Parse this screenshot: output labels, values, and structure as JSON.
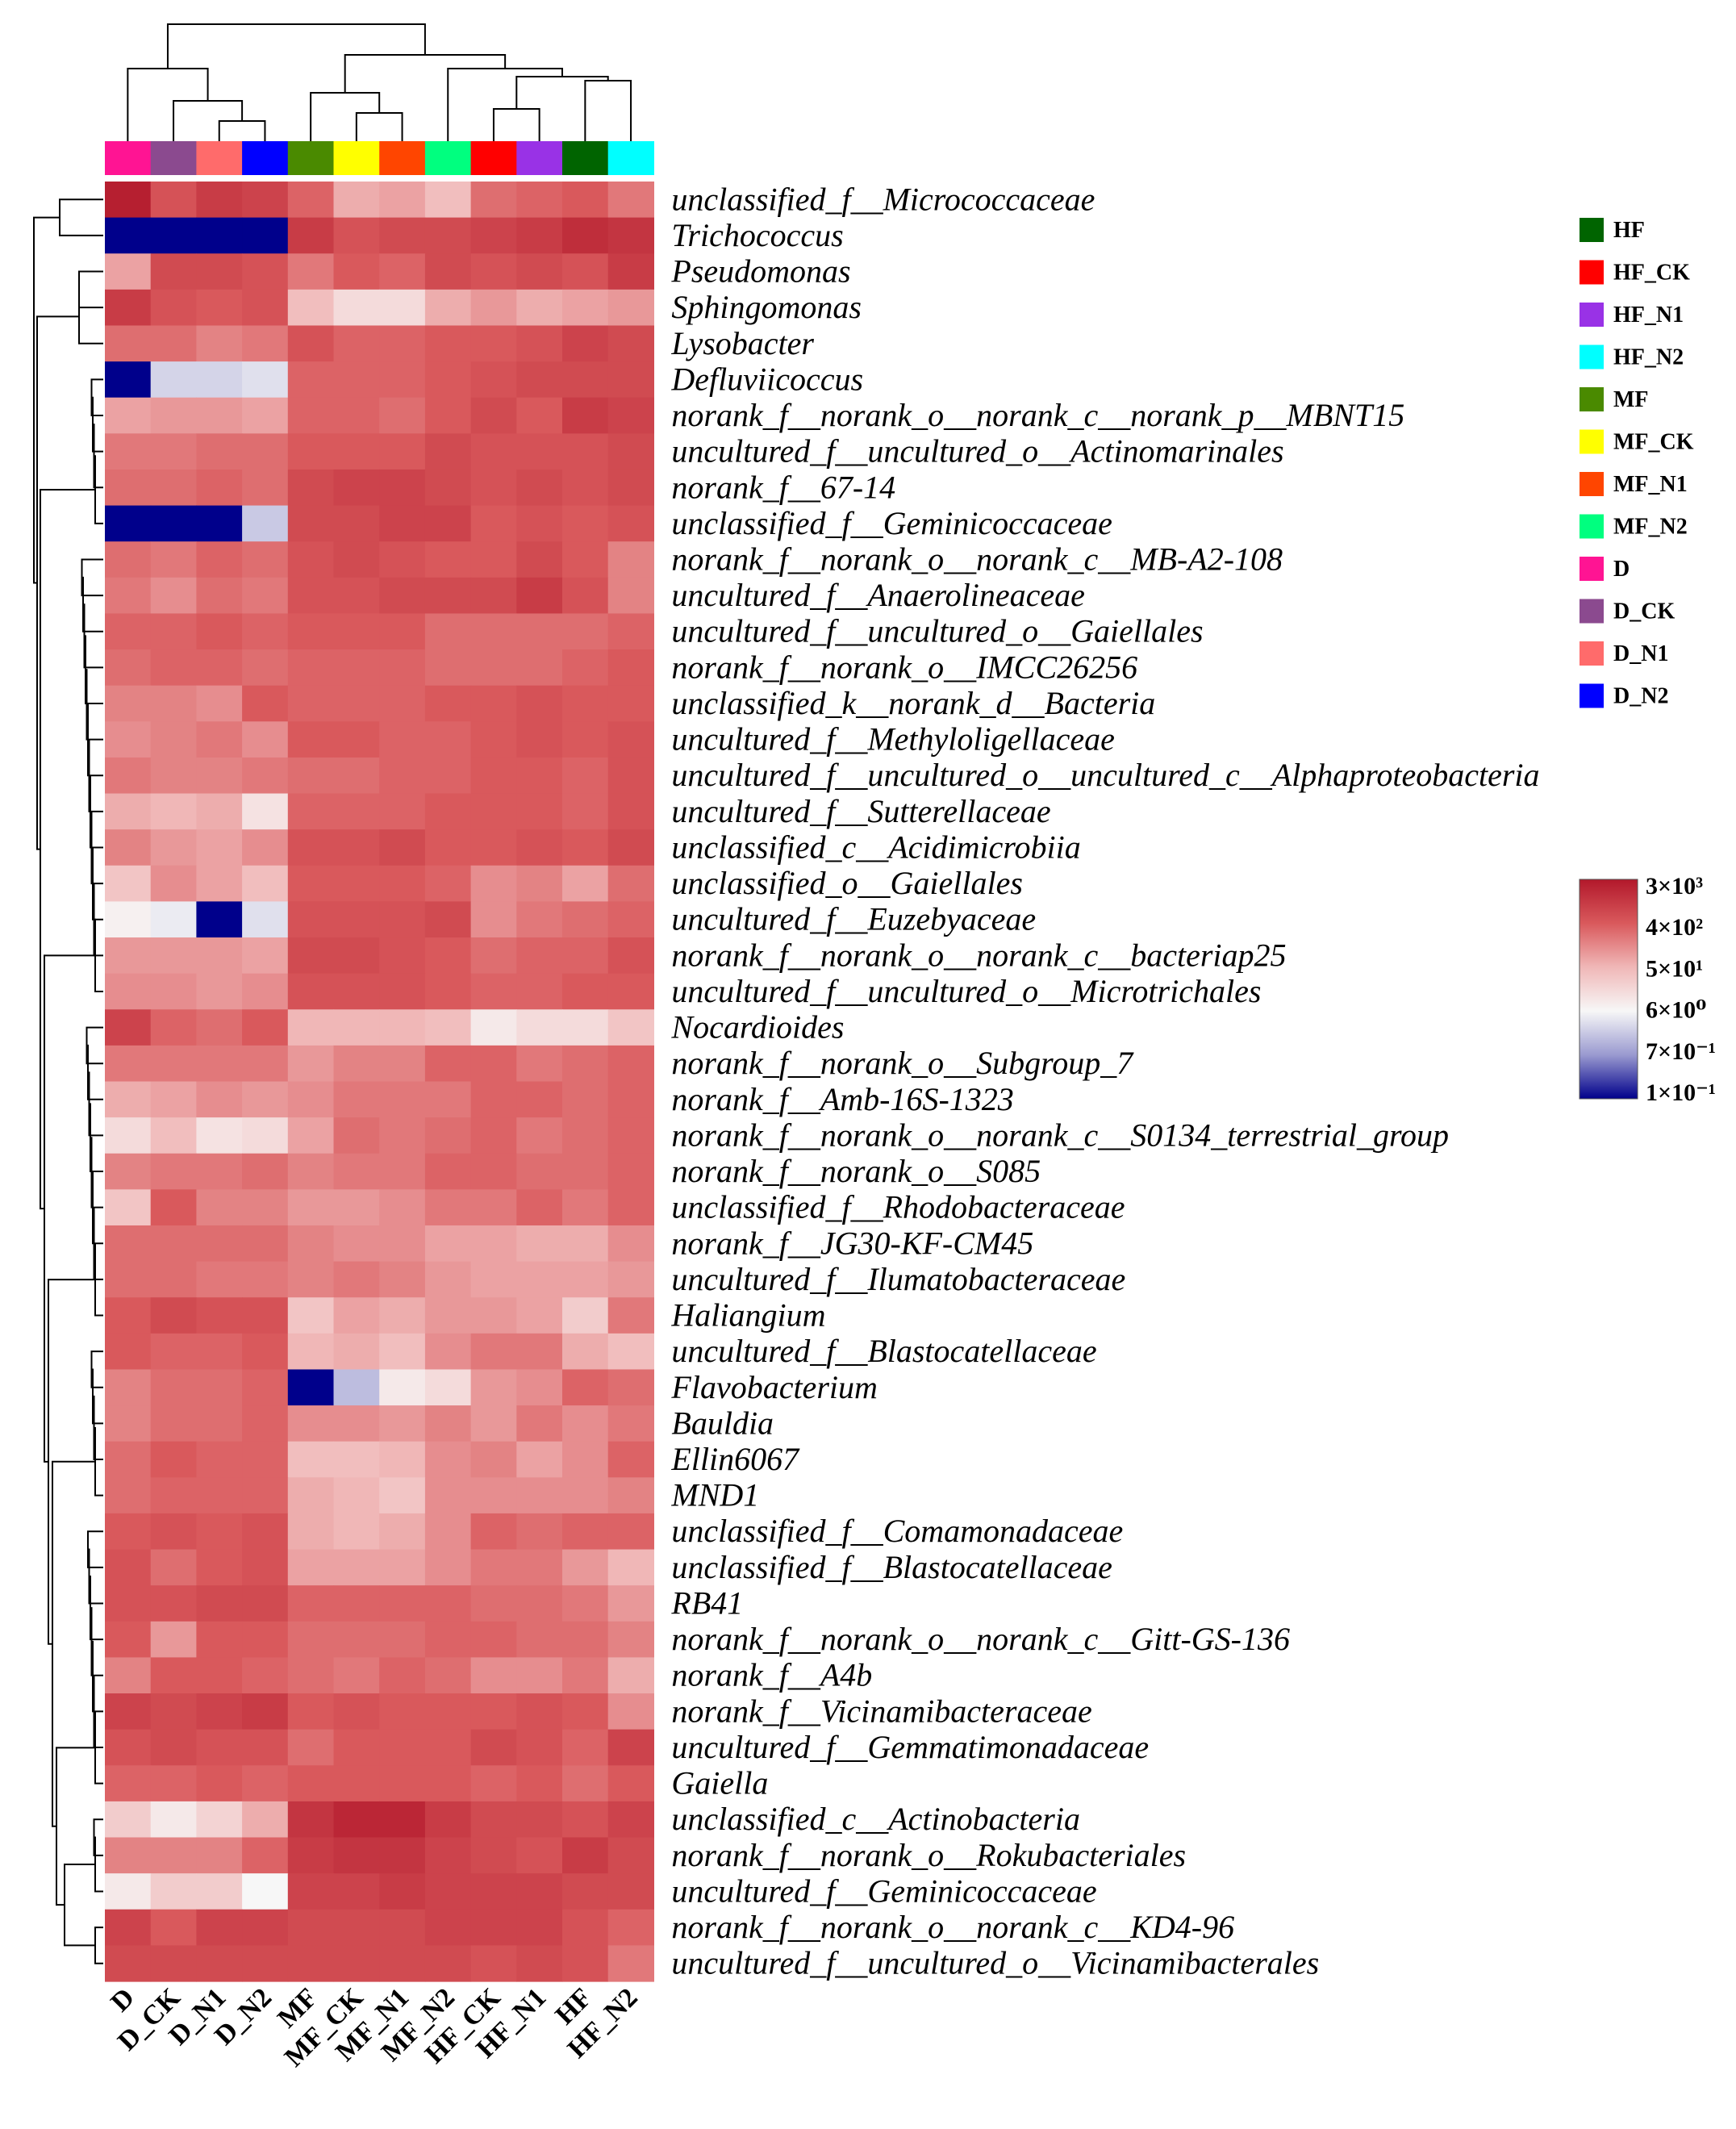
{
  "colors": {
    "group": {
      "D": "#ff1493",
      "D_CK": "#8b4a8f",
      "D_N1": "#ff6b6b",
      "D_N2": "#0000ff",
      "MF": "#4a8a00",
      "MF_CK": "#ffff00",
      "MF_N1": "#ff4500",
      "MF_N2": "#00ff7f",
      "HF_CK": "#ff0000",
      "HF_N1": "#9932e6",
      "HF": "#006400",
      "HF_N2": "#00ffff"
    },
    "scale": [
      "#b2182b",
      "#d9595c",
      "#f0b7b7",
      "#f7f7f7",
      "#9a9ad0",
      "#00008b"
    ]
  },
  "chart_data": {
    "type": "heatmap",
    "title": "",
    "columns": [
      "D",
      "D_CK",
      "D_N1",
      "D_N2",
      "MF",
      "MF_CK",
      "MF_N1",
      "MF_N2",
      "HF_CK",
      "HF_N1",
      "HF",
      "HF_N2"
    ],
    "rows": [
      "unclassified_f__Micrococcaceae",
      "Trichococcus",
      "Pseudomonas",
      "Sphingomonas",
      "Lysobacter",
      "Defluviicoccus",
      "norank_f__norank_o__norank_c__norank_p__MBNT15",
      "uncultured_f__uncultured_o__Actinomarinales",
      "norank_f__67-14",
      "unclassified_f__Geminicoccaceae",
      "norank_f__norank_o__norank_c__MB-A2-108",
      "uncultured_f__Anaerolineaceae",
      "uncultured_f__uncultured_o__Gaiellales",
      "norank_f__norank_o__IMCC26256",
      "unclassified_k__norank_d__Bacteria",
      "uncultured_f__Methyloligellaceae",
      "uncultured_f__uncultured_o__uncultured_c__Alphaproteobacteria",
      "uncultured_f__Sutterellaceae",
      "unclassified_c__Acidimicrobiia",
      "unclassified_o__Gaiellales",
      "uncultured_f__Euzebyaceae",
      "norank_f__norank_o__norank_c__bacteriap25",
      "uncultured_f__uncultured_o__Microtrichales",
      "Nocardioides",
      "norank_f__norank_o__Subgroup_7",
      "norank_f__Amb-16S-1323",
      "norank_f__norank_o__norank_c__S0134_terrestrial_group",
      "norank_f__norank_o__S085",
      "unclassified_f__Rhodobacteraceae",
      "norank_f__JG30-KF-CM45",
      "uncultured_f__Ilumatobacteraceae",
      "Haliangium",
      "uncultured_f__Blastocatellaceae",
      "Flavobacterium",
      "Bauldia",
      "Ellin6067",
      "MND1",
      "unclassified_f__Comamonadaceae",
      "unclassified_f__Blastocatellaceae",
      "RB41",
      "norank_f__norank_o__norank_c__Gitt-GS-136",
      "norank_f__A4b",
      "norank_f__Vicinamibacteraceae",
      "uncultured_f__Gemmatimonadaceae",
      "Gaiella",
      "unclassified_c__Actinobacteria",
      "norank_f__norank_o__Rokubacteriales",
      "uncultured_f__Geminicoccaceae",
      "norank_f__norank_o__norank_c__KD4-96",
      "uncultured_f__uncultured_o__Vicinamibacterales"
    ],
    "legend": [
      "HF",
      "HF_CK",
      "HF_N1",
      "HF_N2",
      "MF",
      "MF_CK",
      "MF_N1",
      "MF_N2",
      "D",
      "D_CK",
      "D_N1",
      "D_N2"
    ],
    "color_scale": {
      "labels": [
        "3×10³",
        "4×10²",
        "5×10¹",
        "6×10⁰",
        "7×10⁻¹",
        "1×10⁻¹"
      ],
      "log_min": -1,
      "log_max": 3.5
    },
    "values_log10": [
      [
        3.4,
        2.7,
        3.0,
        2.9,
        2.5,
        1.8,
        1.9,
        1.6,
        2.4,
        2.5,
        2.6,
        2.3
      ],
      [
        -1.0,
        -1.0,
        -1.0,
        -1.0,
        3.0,
        2.7,
        2.8,
        2.8,
        2.9,
        3.0,
        3.2,
        3.1
      ],
      [
        1.9,
        2.8,
        2.8,
        2.7,
        2.3,
        2.6,
        2.5,
        2.8,
        2.7,
        2.8,
        2.7,
        3.0
      ],
      [
        3.0,
        2.7,
        2.6,
        2.7,
        1.6,
        1.2,
        1.2,
        1.8,
        2.0,
        1.8,
        1.9,
        2.0
      ],
      [
        2.4,
        2.4,
        2.2,
        2.3,
        2.7,
        2.5,
        2.5,
        2.6,
        2.6,
        2.7,
        2.9,
        2.8
      ],
      [
        -1.0,
        0.5,
        0.5,
        0.6,
        2.5,
        2.5,
        2.5,
        2.6,
        2.7,
        2.8,
        2.8,
        2.8
      ],
      [
        1.9,
        2.0,
        2.0,
        1.9,
        2.5,
        2.5,
        2.4,
        2.6,
        2.8,
        2.6,
        3.0,
        2.9
      ],
      [
        2.3,
        2.3,
        2.4,
        2.4,
        2.6,
        2.6,
        2.6,
        2.8,
        2.7,
        2.7,
        2.7,
        2.8
      ],
      [
        2.4,
        2.4,
        2.5,
        2.4,
        2.8,
        2.9,
        2.9,
        2.8,
        2.7,
        2.8,
        2.7,
        2.8
      ],
      [
        -1.0,
        -1.0,
        -1.0,
        0.4,
        2.8,
        2.8,
        2.9,
        2.9,
        2.6,
        2.7,
        2.6,
        2.7
      ],
      [
        2.4,
        2.3,
        2.5,
        2.4,
        2.7,
        2.8,
        2.7,
        2.6,
        2.6,
        2.8,
        2.6,
        2.2
      ],
      [
        2.3,
        2.1,
        2.4,
        2.3,
        2.7,
        2.7,
        2.8,
        2.8,
        2.8,
        3.0,
        2.7,
        2.2
      ],
      [
        2.5,
        2.5,
        2.6,
        2.5,
        2.6,
        2.6,
        2.6,
        2.4,
        2.4,
        2.4,
        2.4,
        2.5
      ],
      [
        2.4,
        2.5,
        2.5,
        2.4,
        2.5,
        2.5,
        2.5,
        2.4,
        2.4,
        2.4,
        2.5,
        2.6
      ],
      [
        2.2,
        2.2,
        2.1,
        2.6,
        2.5,
        2.5,
        2.5,
        2.6,
        2.6,
        2.7,
        2.6,
        2.6
      ],
      [
        2.1,
        2.2,
        2.3,
        2.1,
        2.6,
        2.6,
        2.5,
        2.5,
        2.6,
        2.7,
        2.6,
        2.7
      ],
      [
        2.3,
        2.2,
        2.2,
        2.3,
        2.4,
        2.4,
        2.5,
        2.5,
        2.6,
        2.6,
        2.5,
        2.7
      ],
      [
        1.8,
        1.7,
        1.8,
        1.1,
        2.5,
        2.5,
        2.5,
        2.6,
        2.6,
        2.6,
        2.5,
        2.7
      ],
      [
        2.2,
        2.0,
        1.9,
        2.1,
        2.7,
        2.7,
        2.8,
        2.6,
        2.6,
        2.7,
        2.6,
        2.8
      ],
      [
        1.5,
        2.1,
        1.9,
        1.6,
        2.6,
        2.6,
        2.6,
        2.5,
        2.1,
        2.2,
        1.9,
        2.4
      ],
      [
        0.9,
        0.7,
        -1.0,
        0.6,
        2.7,
        2.7,
        2.7,
        2.8,
        2.1,
        2.3,
        2.4,
        2.5
      ],
      [
        2.0,
        2.0,
        2.0,
        1.9,
        2.8,
        2.8,
        2.7,
        2.6,
        2.4,
        2.5,
        2.5,
        2.7
      ],
      [
        2.1,
        2.1,
        2.0,
        2.1,
        2.7,
        2.7,
        2.7,
        2.6,
        2.5,
        2.5,
        2.6,
        2.6
      ],
      [
        2.9,
        2.5,
        2.4,
        2.6,
        1.7,
        1.7,
        1.7,
        1.6,
        1.0,
        1.2,
        1.2,
        1.5
      ],
      [
        2.3,
        2.3,
        2.3,
        2.3,
        2.0,
        2.2,
        2.2,
        2.5,
        2.5,
        2.3,
        2.4,
        2.5
      ],
      [
        1.8,
        1.9,
        2.1,
        2.0,
        2.1,
        2.3,
        2.3,
        2.3,
        2.5,
        2.5,
        2.4,
        2.5
      ],
      [
        1.2,
        1.6,
        1.1,
        1.2,
        1.9,
        2.4,
        2.3,
        2.4,
        2.5,
        2.3,
        2.4,
        2.5
      ],
      [
        2.2,
        2.3,
        2.3,
        2.4,
        2.2,
        2.3,
        2.3,
        2.5,
        2.5,
        2.4,
        2.4,
        2.5
      ],
      [
        1.5,
        2.6,
        2.2,
        2.2,
        2.0,
        2.0,
        2.1,
        2.3,
        2.3,
        2.5,
        2.3,
        2.5
      ],
      [
        2.4,
        2.4,
        2.4,
        2.4,
        2.2,
        2.1,
        2.1,
        1.9,
        1.9,
        1.8,
        1.8,
        2.1
      ],
      [
        2.4,
        2.4,
        2.3,
        2.3,
        2.2,
        2.3,
        2.2,
        2.0,
        1.9,
        1.9,
        1.9,
        2.0
      ],
      [
        2.6,
        2.8,
        2.7,
        2.7,
        1.5,
        1.9,
        1.8,
        2.0,
        2.0,
        1.9,
        1.4,
        2.3
      ],
      [
        2.6,
        2.5,
        2.5,
        2.6,
        1.7,
        1.8,
        1.6,
        2.1,
        2.3,
        2.3,
        1.8,
        1.6
      ],
      [
        2.2,
        2.4,
        2.4,
        2.5,
        -1.0,
        0.3,
        1.0,
        1.2,
        2.0,
        2.1,
        2.5,
        2.4
      ],
      [
        2.2,
        2.4,
        2.4,
        2.5,
        2.1,
        2.1,
        2.0,
        2.2,
        2.0,
        2.3,
        2.1,
        2.3
      ],
      [
        2.4,
        2.6,
        2.5,
        2.5,
        1.6,
        1.6,
        1.7,
        2.1,
        2.2,
        1.9,
        2.1,
        2.5
      ],
      [
        2.4,
        2.5,
        2.5,
        2.5,
        1.8,
        1.7,
        1.5,
        2.1,
        2.1,
        2.1,
        2.1,
        2.2
      ],
      [
        2.6,
        2.7,
        2.6,
        2.7,
        1.8,
        1.7,
        1.8,
        2.1,
        2.5,
        2.4,
        2.5,
        2.5
      ],
      [
        2.7,
        2.4,
        2.6,
        2.7,
        1.9,
        1.9,
        1.9,
        2.1,
        2.3,
        2.3,
        2.0,
        1.7
      ],
      [
        2.7,
        2.7,
        2.8,
        2.8,
        2.5,
        2.5,
        2.5,
        2.5,
        2.4,
        2.4,
        2.3,
        2.0
      ],
      [
        2.6,
        2.0,
        2.6,
        2.6,
        2.4,
        2.4,
        2.4,
        2.5,
        2.5,
        2.4,
        2.4,
        2.2
      ],
      [
        2.2,
        2.6,
        2.6,
        2.5,
        2.4,
        2.3,
        2.5,
        2.4,
        2.1,
        2.1,
        2.3,
        1.8
      ],
      [
        2.9,
        2.8,
        2.9,
        3.0,
        2.6,
        2.7,
        2.6,
        2.6,
        2.6,
        2.7,
        2.6,
        2.1
      ],
      [
        2.7,
        2.8,
        2.7,
        2.7,
        2.4,
        2.6,
        2.6,
        2.6,
        2.8,
        2.7,
        2.5,
        2.9
      ],
      [
        2.5,
        2.5,
        2.6,
        2.5,
        2.6,
        2.6,
        2.6,
        2.6,
        2.5,
        2.6,
        2.4,
        2.6
      ],
      [
        1.4,
        1.0,
        1.3,
        1.8,
        3.1,
        3.3,
        3.3,
        3.0,
        2.8,
        2.8,
        2.7,
        2.9
      ],
      [
        2.2,
        2.2,
        2.2,
        2.5,
        3.0,
        3.1,
        3.1,
        2.9,
        2.8,
        2.7,
        3.0,
        2.8
      ],
      [
        1.0,
        1.4,
        1.4,
        0.8,
        2.9,
        2.9,
        3.0,
        2.9,
        2.9,
        2.9,
        2.8,
        2.8
      ],
      [
        2.9,
        2.6,
        2.9,
        2.9,
        2.8,
        2.8,
        2.8,
        2.9,
        2.9,
        2.9,
        2.7,
        2.5
      ],
      [
        2.8,
        2.8,
        2.8,
        2.8,
        2.8,
        2.8,
        2.8,
        2.8,
        2.7,
        2.8,
        2.7,
        2.3
      ]
    ]
  }
}
